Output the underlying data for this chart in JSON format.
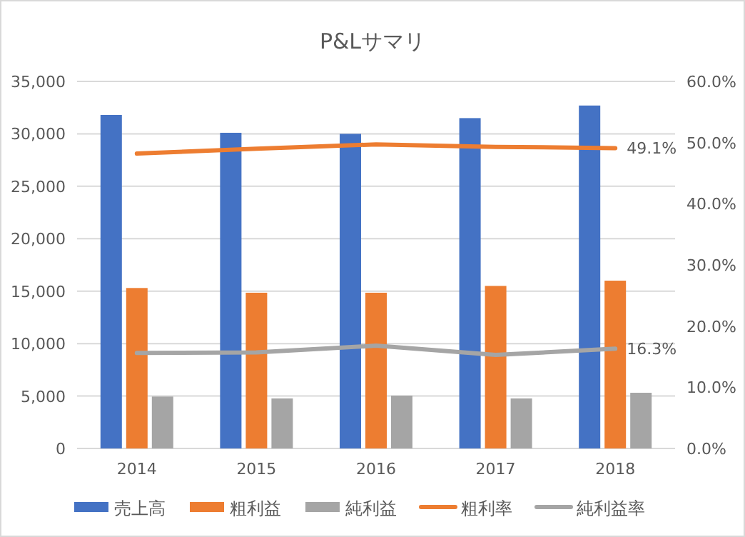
{
  "chart_data": {
    "type": "bar",
    "title": "P&Lサマリ",
    "categories": [
      "2014",
      "2015",
      "2016",
      "2017",
      "2018"
    ],
    "series": [
      {
        "name": "売上高",
        "color": "#4472c4",
        "values": [
          31800,
          30100,
          30000,
          31500,
          32700
        ]
      },
      {
        "name": "粗利益",
        "color": "#ed7d31",
        "values": [
          15300,
          14850,
          14850,
          15500,
          16000
        ]
      },
      {
        "name": "純利益",
        "color": "#a5a5a5",
        "values": [
          4950,
          4770,
          5040,
          4770,
          5310
        ]
      },
      {
        "name": "粗利率",
        "type": "line",
        "axis": "y2",
        "color": "#ed7d31",
        "values": [
          48.2,
          49.0,
          49.7,
          49.3,
          49.1
        ],
        "value_labels": [
          null,
          null,
          null,
          null,
          "49.1%"
        ]
      },
      {
        "name": "純利益率",
        "type": "line",
        "axis": "y2",
        "color": "#a5a5a5",
        "values": [
          15.6,
          15.7,
          16.8,
          15.3,
          16.3
        ],
        "value_labels": [
          null,
          null,
          null,
          null,
          "16.3%"
        ]
      }
    ],
    "ylim": [
      0,
      35000
    ],
    "yticks": [
      {
        "value": 0,
        "label": "0"
      },
      {
        "value": 5000,
        "label": "5,000"
      },
      {
        "value": 10000,
        "label": "10,000"
      },
      {
        "value": 15000,
        "label": "15,000"
      },
      {
        "value": 20000,
        "label": "20,000"
      },
      {
        "value": 25000,
        "label": "25,000"
      },
      {
        "value": 30000,
        "label": "30,000"
      },
      {
        "value": 35000,
        "label": "35,000"
      }
    ],
    "y2lim": [
      0,
      60
    ],
    "y2ticks": [
      {
        "value": 0,
        "label": "0.0%"
      },
      {
        "value": 10,
        "label": "10.0%"
      },
      {
        "value": 20,
        "label": "20.0%"
      },
      {
        "value": 30,
        "label": "30.0%"
      },
      {
        "value": 40,
        "label": "40.0%"
      },
      {
        "value": 50,
        "label": "50.0%"
      },
      {
        "value": 60,
        "label": "60.0%"
      }
    ],
    "grid": "y",
    "legend": "bottom"
  }
}
